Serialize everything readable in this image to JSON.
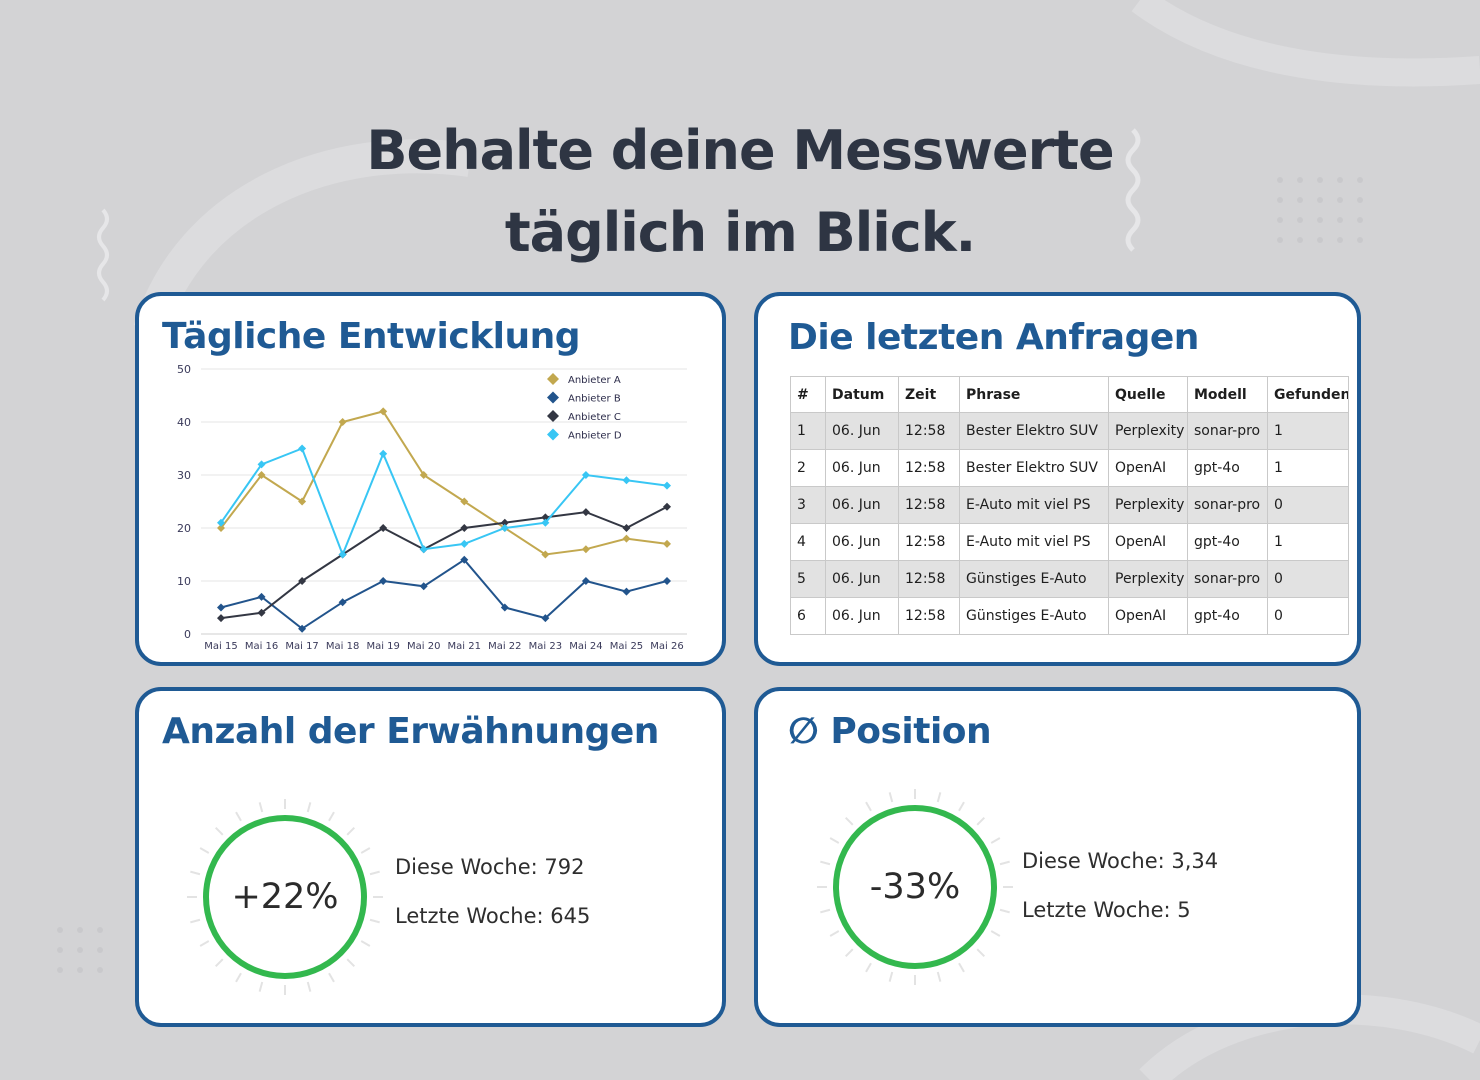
{
  "headline": {
    "line1": "Behalte deine Messwerte",
    "line2": "täglich im Blick."
  },
  "colors": {
    "accent": "#1f5a94",
    "ring": "#33b84e",
    "anbieter_a": "#c2a84f",
    "anbieter_b": "#22548c",
    "anbieter_c": "#333743",
    "anbieter_d": "#38c6f4"
  },
  "chart_card": {
    "title": "Tägliche Entwicklung"
  },
  "chart_data": {
    "type": "line",
    "categories": [
      "Mai 15",
      "Mai 16",
      "Mai 17",
      "Mai 18",
      "Mai 19",
      "Mai 20",
      "Mai 21",
      "Mai 22",
      "Mai 23",
      "Mai 24",
      "Mai 25",
      "Mai 26"
    ],
    "ylim": [
      0,
      50
    ],
    "yticks": [
      "0",
      "10",
      "20",
      "30",
      "40",
      "50"
    ],
    "grid": true,
    "legend_position": "top-right",
    "marker": "diamond",
    "series": [
      {
        "name": "Anbieter A",
        "color": "#c2a84f",
        "values": [
          20,
          30,
          25,
          40,
          42,
          30,
          25,
          20,
          15,
          16,
          18,
          17
        ]
      },
      {
        "name": "Anbieter B",
        "color": "#22548c",
        "values": [
          5,
          7,
          1,
          6,
          10,
          9,
          14,
          5,
          3,
          10,
          8,
          10
        ]
      },
      {
        "name": "Anbieter C",
        "color": "#333743",
        "values": [
          3,
          4,
          10,
          15,
          20,
          16,
          20,
          21,
          22,
          23,
          20,
          24
        ]
      },
      {
        "name": "Anbieter D",
        "color": "#38c6f4",
        "values": [
          21,
          32,
          35,
          15,
          34,
          16,
          17,
          20,
          21,
          30,
          29,
          28
        ]
      }
    ]
  },
  "table_card": {
    "title": "Die letzten Anfragen",
    "columns": [
      "#",
      "Datum",
      "Zeit",
      "Phrase",
      "Quelle",
      "Modell",
      "Gefunden"
    ],
    "rows": [
      [
        "1",
        "06. Jun",
        "12:58",
        "Bester Elektro SUV",
        "Perplexity",
        "sonar-pro",
        "1"
      ],
      [
        "2",
        "06. Jun",
        "12:58",
        "Bester Elektro SUV",
        "OpenAI",
        "gpt-4o",
        "1"
      ],
      [
        "3",
        "06. Jun",
        "12:58",
        "E-Auto mit viel PS",
        "Perplexity",
        "sonar-pro",
        "0"
      ],
      [
        "4",
        "06. Jun",
        "12:58",
        "E-Auto mit viel PS",
        "OpenAI",
        "gpt-4o",
        "1"
      ],
      [
        "5",
        "06. Jun",
        "12:58",
        "Günstiges E-Auto",
        "Perplexity",
        "sonar-pro",
        "0"
      ],
      [
        "6",
        "06. Jun",
        "12:58",
        "Günstiges E-Auto",
        "OpenAI",
        "gpt-4o",
        "0"
      ]
    ]
  },
  "mentions_card": {
    "title": "Anzahl der Erwähnungen",
    "change": "+22%",
    "this_week": "Diese Woche: 792",
    "last_week": "Letzte Woche: 645"
  },
  "position_card": {
    "title": "∅ Position",
    "change": "-33%",
    "this_week": "Diese Woche: 3,34",
    "last_week": "Letzte Woche: 5"
  }
}
